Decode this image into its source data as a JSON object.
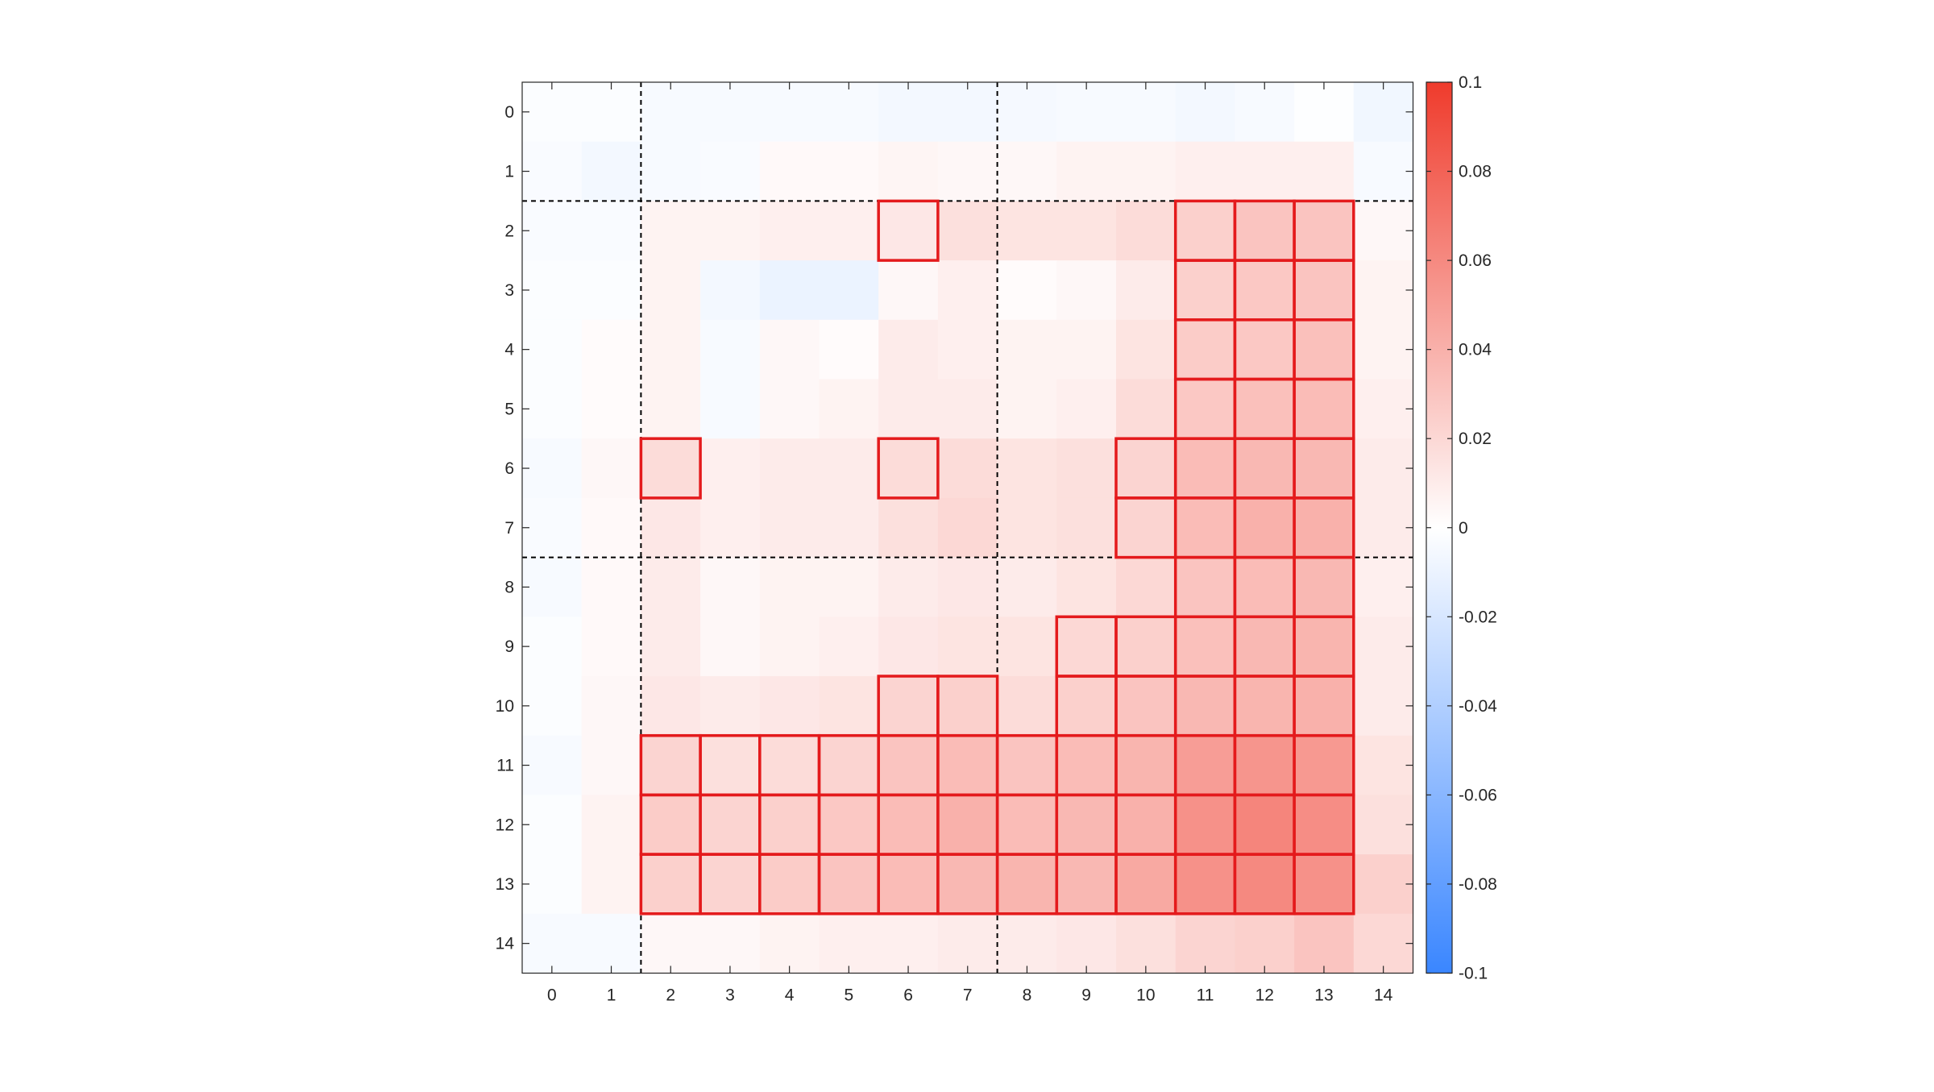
{
  "chart_data": {
    "type": "heatmap",
    "title": "",
    "xlabel": "",
    "ylabel": "",
    "x_tick_labels": [
      "0",
      "1",
      "2",
      "3",
      "4",
      "5",
      "6",
      "7",
      "8",
      "9",
      "10",
      "11",
      "12",
      "13",
      "14"
    ],
    "y_tick_labels": [
      "0",
      "1",
      "2",
      "3",
      "4",
      "5",
      "6",
      "7",
      "8",
      "9",
      "10",
      "11",
      "12",
      "13",
      "14"
    ],
    "values": [
      [
        -0.002,
        -0.002,
        -0.004,
        -0.004,
        -0.004,
        -0.004,
        -0.006,
        -0.006,
        -0.005,
        -0.004,
        -0.004,
        -0.006,
        -0.004,
        -0.001,
        -0.007
      ],
      [
        -0.003,
        -0.006,
        -0.004,
        -0.003,
        0.003,
        0.003,
        0.005,
        0.004,
        0.004,
        0.006,
        0.006,
        0.008,
        0.008,
        0.008,
        -0.004
      ],
      [
        -0.003,
        -0.003,
        0.006,
        0.006,
        0.008,
        0.008,
        0.012,
        0.016,
        0.014,
        0.014,
        0.018,
        0.024,
        0.03,
        0.03,
        0.004
      ],
      [
        -0.002,
        -0.002,
        0.006,
        -0.006,
        -0.01,
        -0.01,
        0.004,
        0.008,
        0.002,
        0.004,
        0.01,
        0.024,
        0.028,
        0.03,
        0.006
      ],
      [
        -0.002,
        0.002,
        0.006,
        -0.004,
        0.004,
        0.002,
        0.01,
        0.008,
        0.006,
        0.006,
        0.014,
        0.026,
        0.028,
        0.032,
        0.006
      ],
      [
        -0.002,
        0.002,
        0.006,
        -0.004,
        0.004,
        0.006,
        0.01,
        0.01,
        0.006,
        0.008,
        0.018,
        0.028,
        0.032,
        0.034,
        0.008
      ],
      [
        -0.004,
        0.004,
        0.018,
        0.008,
        0.01,
        0.01,
        0.018,
        0.018,
        0.014,
        0.016,
        0.022,
        0.034,
        0.036,
        0.036,
        0.01
      ],
      [
        -0.003,
        0.003,
        0.012,
        0.008,
        0.01,
        0.01,
        0.016,
        0.02,
        0.014,
        0.016,
        0.022,
        0.034,
        0.04,
        0.04,
        0.01
      ],
      [
        -0.004,
        0.003,
        0.01,
        0.004,
        0.006,
        0.006,
        0.01,
        0.012,
        0.01,
        0.014,
        0.02,
        0.03,
        0.034,
        0.036,
        0.008
      ],
      [
        -0.002,
        0.003,
        0.01,
        0.004,
        0.006,
        0.008,
        0.012,
        0.014,
        0.014,
        0.02,
        0.024,
        0.032,
        0.036,
        0.038,
        0.01
      ],
      [
        -0.002,
        0.004,
        0.012,
        0.01,
        0.012,
        0.014,
        0.022,
        0.024,
        0.018,
        0.024,
        0.03,
        0.036,
        0.038,
        0.04,
        0.01
      ],
      [
        -0.004,
        0.004,
        0.022,
        0.016,
        0.018,
        0.022,
        0.03,
        0.034,
        0.03,
        0.034,
        0.038,
        0.05,
        0.054,
        0.052,
        0.014
      ],
      [
        -0.002,
        0.006,
        0.026,
        0.022,
        0.024,
        0.028,
        0.034,
        0.04,
        0.034,
        0.036,
        0.04,
        0.056,
        0.062,
        0.058,
        0.016
      ],
      [
        -0.002,
        0.006,
        0.024,
        0.022,
        0.026,
        0.03,
        0.034,
        0.036,
        0.038,
        0.036,
        0.044,
        0.056,
        0.06,
        0.056,
        0.024
      ],
      [
        -0.004,
        -0.004,
        0.004,
        0.004,
        0.006,
        0.008,
        0.008,
        0.01,
        0.01,
        0.012,
        0.016,
        0.022,
        0.024,
        0.03,
        0.02
      ]
    ],
    "highlighted_cells": [
      [
        2,
        6
      ],
      [
        2,
        11
      ],
      [
        2,
        12
      ],
      [
        2,
        13
      ],
      [
        3,
        11
      ],
      [
        3,
        12
      ],
      [
        3,
        13
      ],
      [
        4,
        11
      ],
      [
        4,
        12
      ],
      [
        4,
        13
      ],
      [
        5,
        11
      ],
      [
        5,
        12
      ],
      [
        5,
        13
      ],
      [
        6,
        2
      ],
      [
        6,
        6
      ],
      [
        6,
        10
      ],
      [
        6,
        11
      ],
      [
        6,
        12
      ],
      [
        6,
        13
      ],
      [
        7,
        10
      ],
      [
        7,
        11
      ],
      [
        7,
        12
      ],
      [
        7,
        13
      ],
      [
        8,
        11
      ],
      [
        8,
        12
      ],
      [
        8,
        13
      ],
      [
        9,
        9
      ],
      [
        9,
        10
      ],
      [
        9,
        11
      ],
      [
        9,
        12
      ],
      [
        9,
        13
      ],
      [
        10,
        6
      ],
      [
        10,
        7
      ],
      [
        10,
        9
      ],
      [
        10,
        10
      ],
      [
        10,
        11
      ],
      [
        10,
        12
      ],
      [
        10,
        13
      ],
      [
        11,
        2
      ],
      [
        11,
        3
      ],
      [
        11,
        4
      ],
      [
        11,
        5
      ],
      [
        11,
        6
      ],
      [
        11,
        7
      ],
      [
        11,
        8
      ],
      [
        11,
        9
      ],
      [
        11,
        10
      ],
      [
        11,
        11
      ],
      [
        11,
        12
      ],
      [
        11,
        13
      ],
      [
        12,
        2
      ],
      [
        12,
        3
      ],
      [
        12,
        4
      ],
      [
        12,
        5
      ],
      [
        12,
        6
      ],
      [
        12,
        7
      ],
      [
        12,
        8
      ],
      [
        12,
        9
      ],
      [
        12,
        10
      ],
      [
        12,
        11
      ],
      [
        12,
        12
      ],
      [
        12,
        13
      ],
      [
        13,
        2
      ],
      [
        13,
        3
      ],
      [
        13,
        4
      ],
      [
        13,
        5
      ],
      [
        13,
        6
      ],
      [
        13,
        7
      ],
      [
        13,
        8
      ],
      [
        13,
        9
      ],
      [
        13,
        10
      ],
      [
        13,
        11
      ],
      [
        13,
        12
      ],
      [
        13,
        13
      ]
    ],
    "divider_x": [
      1.5,
      7.5
    ],
    "divider_y": [
      1.5,
      7.5
    ],
    "color_range": [
      -0.1,
      0.1
    ],
    "colorbar_ticks": [
      0.1,
      0.08,
      0.06,
      0.04,
      0.02,
      0,
      -0.02,
      -0.04,
      -0.06,
      -0.08,
      -0.1
    ],
    "colorbar_tick_labels": [
      "0.1",
      "0.08",
      "0.06",
      "0.04",
      "0.02",
      "0",
      "-0.02",
      "-0.04",
      "-0.06",
      "-0.08",
      "-0.1"
    ],
    "colors": {
      "negative": "#3a86ff",
      "zero": "#ffffff",
      "positive": "#ef3b2c",
      "highlight": "#e41a1c",
      "divider": "#000000"
    },
    "legend": "colorbar-right",
    "grid": false
  }
}
